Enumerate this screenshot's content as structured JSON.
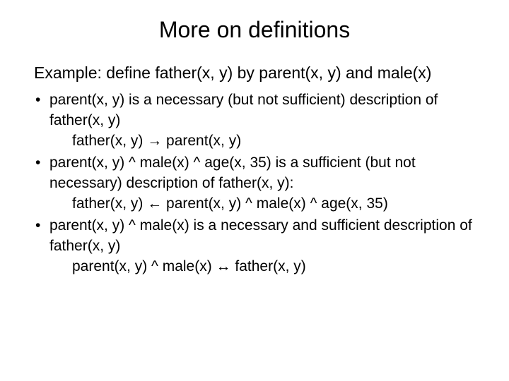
{
  "title": "More on definitions",
  "example_intro": "Example: define father(x, y) by parent(x, y) and male(x)",
  "bullets": [
    {
      "marker": "•",
      "body": "parent(x, y) is a necessary (but not sufficient) description of father(x, y)",
      "formula": "father(x, y) → parent(x, y)"
    },
    {
      "marker": "•",
      "body": "parent(x, y) ^ male(x) ^ age(x, 35) is a sufficient (but not necessary) description of father(x, y):",
      "formula": "father(x, y) ← parent(x, y) ^ male(x) ^ age(x, 35)"
    },
    {
      "marker": "•",
      "body": "parent(x, y) ^ male(x) is a necessary and sufficient description of father(x, y)",
      "formula": "parent(x, y) ^ male(x) ↔ father(x, y)"
    }
  ],
  "colors": {
    "background": "#ffffff",
    "text": "#000000"
  },
  "fonts": {
    "title_size": 32,
    "body_size": 23,
    "bullet_size": 21,
    "family": "Arial"
  }
}
